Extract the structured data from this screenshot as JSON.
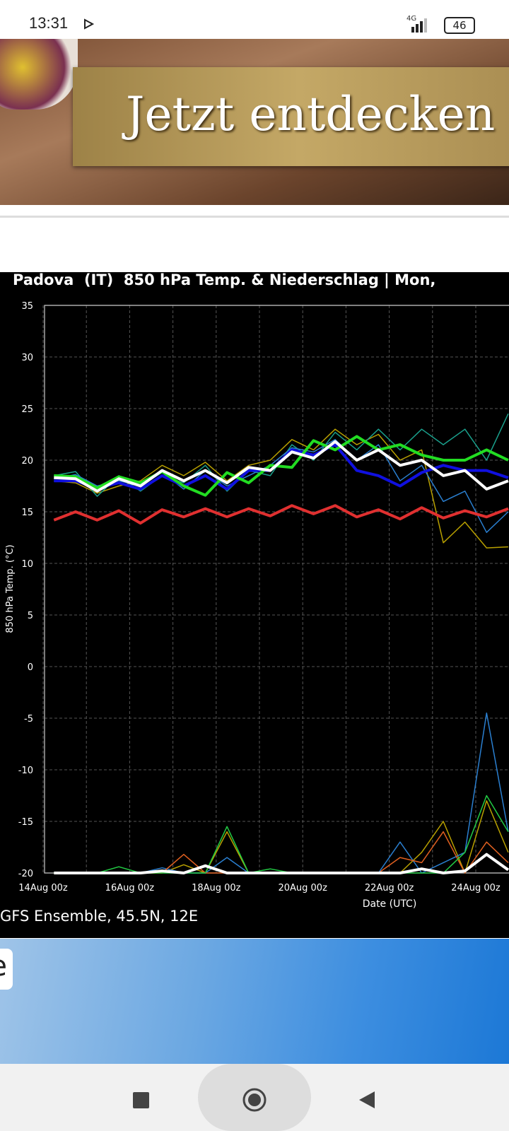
{
  "status_bar": {
    "time": "13:31",
    "network": "4G",
    "battery": "46"
  },
  "ad_top": {
    "text": "Jetzt entdecken"
  },
  "ad_bottom": {
    "text": "e"
  },
  "chart_data": {
    "type": "line",
    "title": "Padova  (IT)  850 hPa Temp. & Niederschlag | Mon, ",
    "y_label": "850 hPa Temp. (°C)",
    "x_label": "Date (UTC)",
    "source": "GFS Ensemble, 45.5N, 12E",
    "ylim": [
      -20,
      35
    ],
    "yticks": [
      -20,
      -15,
      -10,
      -5,
      0,
      5,
      10,
      15,
      20,
      25,
      30,
      35
    ],
    "xticks": [
      "14Aug 00z",
      "16Aug 00z",
      "18Aug 00z",
      "20Aug 00z",
      "22Aug 00z",
      "24Aug 00z"
    ],
    "grid": true,
    "x": [
      "14Aug 06z",
      "14Aug 18z",
      "15Aug 06z",
      "15Aug 18z",
      "16Aug 06z",
      "16Aug 18z",
      "17Aug 06z",
      "17Aug 18z",
      "18Aug 06z",
      "18Aug 18z",
      "19Aug 06z",
      "19Aug 18z",
      "20Aug 06z",
      "20Aug 18z",
      "21Aug 06z",
      "21Aug 18z",
      "22Aug 06z",
      "22Aug 18z",
      "23Aug 06z",
      "23Aug 18z",
      "24Aug 06z",
      "24Aug 18z"
    ],
    "series": [
      {
        "color": "#b8a000",
        "values": [
          18,
          17.8,
          16.8,
          17.5,
          18,
          19.5,
          18.5,
          19.8,
          18,
          19.5,
          20,
          22,
          21,
          23,
          21.5,
          22.5,
          20,
          21,
          12,
          14,
          11.5,
          11.6
        ]
      },
      {
        "color": "#1aa08c",
        "values": [
          18.5,
          18.9,
          16.5,
          18.5,
          17,
          18.5,
          17.8,
          19.5,
          17,
          19,
          18.5,
          21.5,
          20,
          22.7,
          21,
          23,
          21,
          23,
          21.5,
          23,
          20,
          24.5
        ]
      },
      {
        "color": "#2a7fd0",
        "values": [
          18.2,
          18.6,
          17.5,
          18,
          17.5,
          18.8,
          17.2,
          19,
          17.5,
          18.5,
          19.5,
          21.2,
          20.8,
          22,
          20,
          21.5,
          18,
          19.5,
          16,
          17,
          13,
          15
        ]
      },
      {
        "color": "#1010e0",
        "values": [
          18,
          18,
          17.3,
          17.8,
          17.2,
          18.5,
          17.5,
          18.5,
          17.2,
          19,
          19,
          21,
          20.5,
          21.5,
          19,
          18.5,
          17.5,
          18.8,
          19.5,
          19,
          19,
          18.3
        ]
      },
      {
        "color": "#e03030",
        "values": [
          14.2,
          15,
          14.2,
          15.1,
          13.9,
          15.2,
          14.5,
          15.3,
          14.5,
          15.3,
          14.6,
          15.6,
          14.8,
          15.6,
          14.5,
          15.2,
          14.3,
          15.4,
          14.4,
          15.1,
          14.5,
          15.3
        ]
      },
      {
        "color": "#22dd22",
        "values": [
          18.5,
          18.4,
          17.3,
          18.4,
          17.8,
          18.9,
          17.5,
          16.6,
          18.8,
          17.8,
          19.5,
          19.3,
          21.9,
          21,
          22.3,
          21,
          21.5,
          20.5,
          20,
          20,
          21,
          20
        ]
      },
      {
        "color": "#ffffff",
        "values": [
          18.3,
          18.2,
          17,
          18.2,
          17.5,
          19,
          18,
          19,
          17.8,
          19.3,
          19,
          20.8,
          20.2,
          21.8,
          20,
          21,
          19.5,
          20,
          18.5,
          19,
          17.2,
          18
        ]
      },
      {
        "color": "#b8a000",
        "values": [
          -20,
          -20,
          -20,
          -20,
          -20,
          -20,
          -19.2,
          -20,
          -16,
          -20,
          -20,
          -20,
          -20,
          -20,
          -20,
          -20,
          -20,
          -18,
          -15,
          -20,
          -13,
          -18
        ]
      },
      {
        "color": "#2a7fd0",
        "values": [
          -20,
          -20,
          -20,
          -20,
          -20,
          -19.5,
          -20,
          -20,
          -18.5,
          -20,
          -20,
          -20,
          -20,
          -20,
          -20,
          -20,
          -17,
          -20,
          -19,
          -18,
          -4.5,
          -16
        ]
      },
      {
        "color": "#e06020",
        "values": [
          -20,
          -20,
          -20,
          -20,
          -20,
          -20,
          -18.2,
          -20,
          -20,
          -20,
          -20,
          -20,
          -20,
          -20,
          -20,
          -20,
          -18.5,
          -19,
          -16,
          -20,
          -17,
          -19
        ]
      },
      {
        "color": "#22cc44",
        "values": [
          -20,
          -20,
          -20,
          -19.4,
          -20,
          -20,
          -20,
          -20,
          -15.5,
          -20,
          -19.6,
          -20,
          -20,
          -20,
          -20,
          -20,
          -20,
          -20,
          -20,
          -18,
          -12.5,
          -16
        ]
      },
      {
        "color": "#ffffff",
        "values": [
          -20,
          -20,
          -20,
          -20,
          -20,
          -19.8,
          -20,
          -19.3,
          -20,
          -20,
          -20,
          -20,
          -20,
          -20,
          -20,
          -20,
          -20,
          -19.6,
          -20,
          -19.8,
          -18.2,
          -19.7
        ]
      }
    ]
  }
}
